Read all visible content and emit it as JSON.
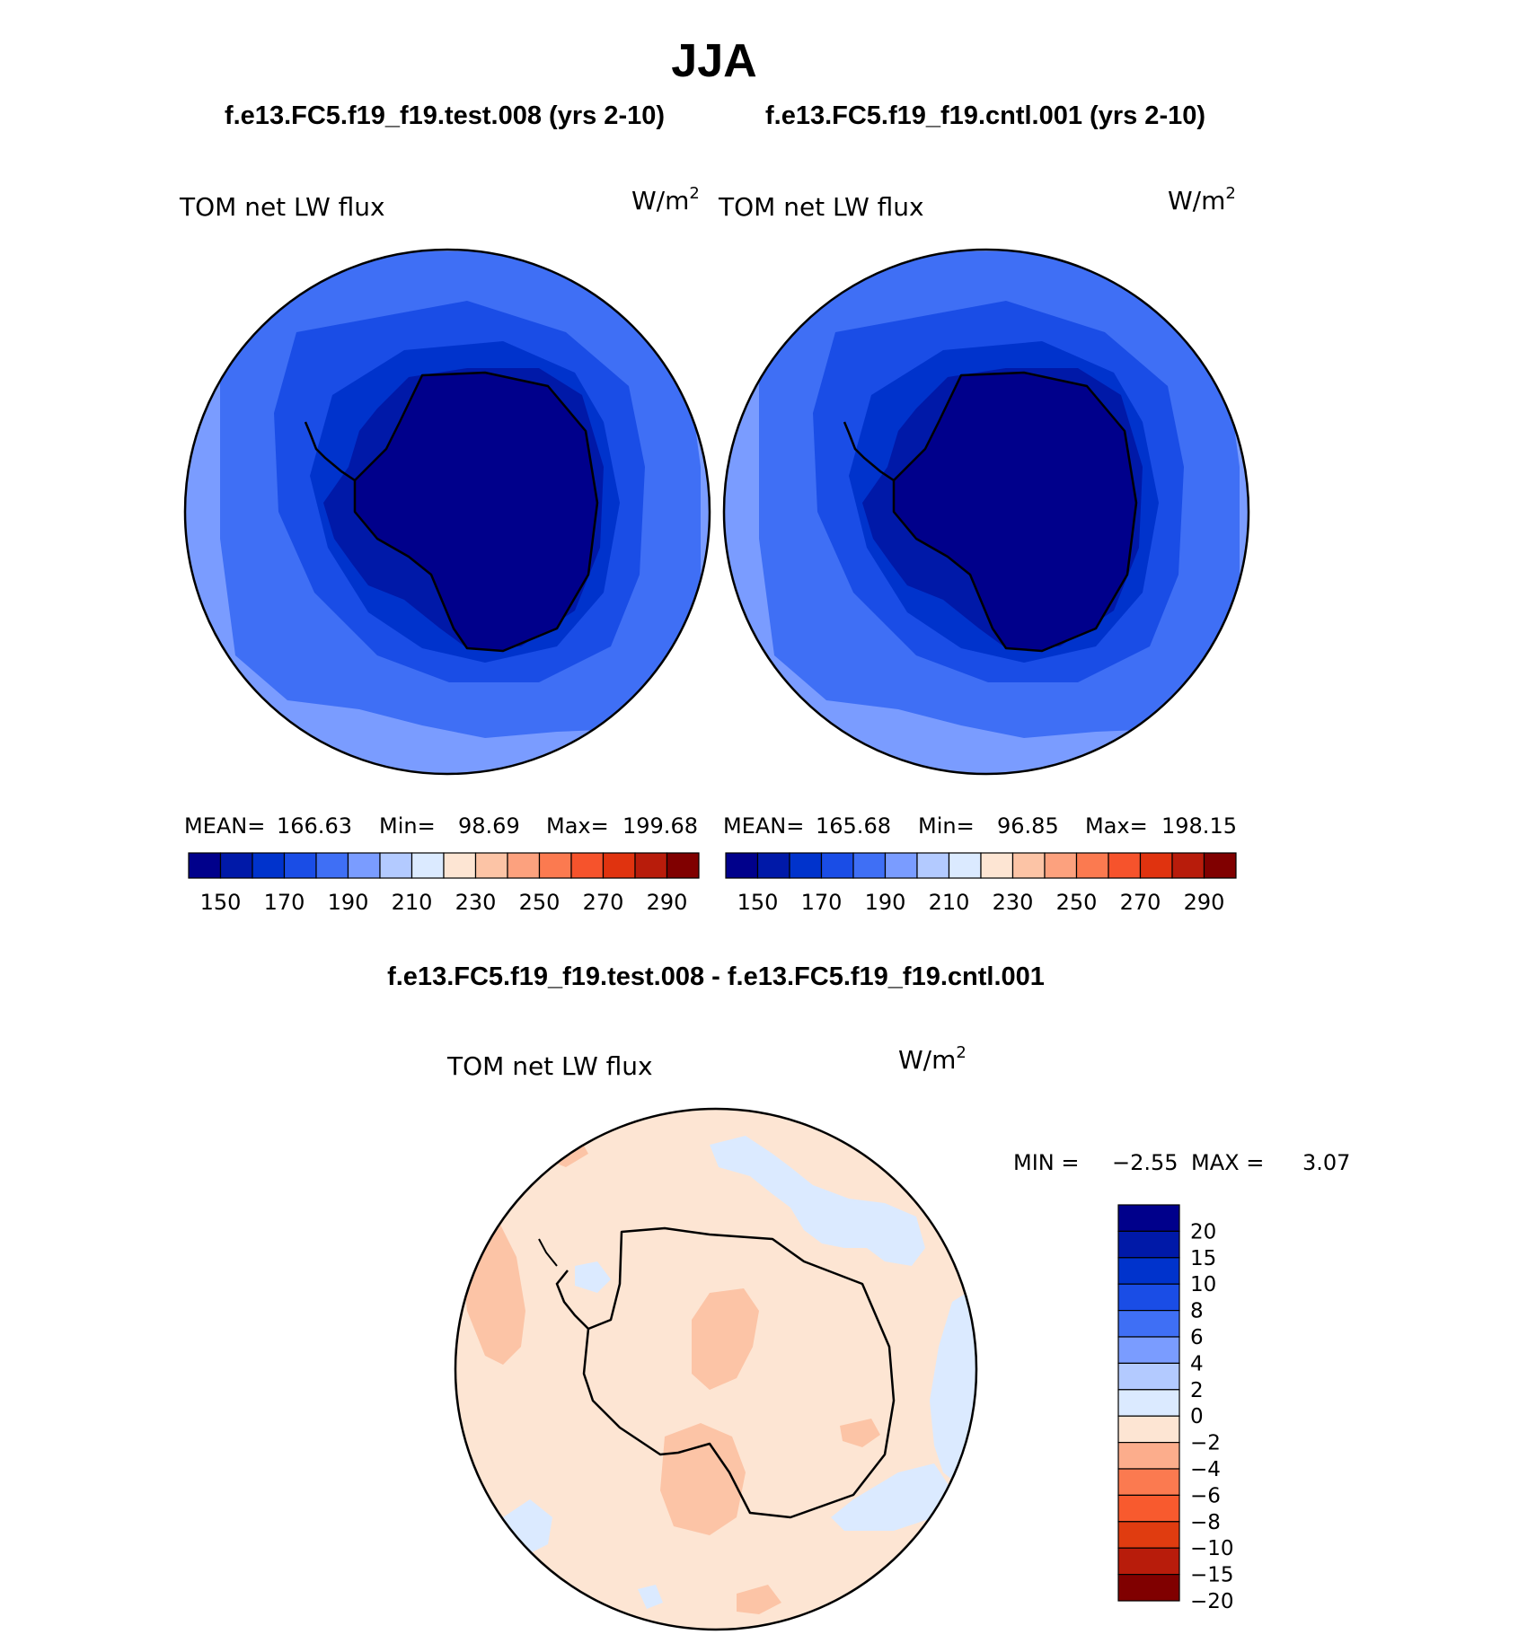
{
  "figure": {
    "season": "JJA",
    "case_test_title": "f.e13.FC5.f19_f19.test.008 (yrs 2-10)",
    "case_cntl_title": "f.e13.FC5.f19_f19.cntl.001 (yrs 2-10)",
    "diff_title": "f.e13.FC5.f19_f19.test.008 - f.e13.FC5.f19_f19.cntl.001"
  },
  "panels": [
    {
      "variable": "TOM net LW flux",
      "units": "W/m",
      "units_exp": "2",
      "stats": {
        "mean_label": "MEAN=",
        "mean": "166.63",
        "min_label": "Min=",
        "min": "98.69",
        "max_label": "Max=",
        "max": "199.68"
      }
    },
    {
      "variable": "TOM net LW flux",
      "units": "W/m",
      "units_exp": "2",
      "stats": {
        "mean_label": "MEAN=",
        "mean": "165.68",
        "min_label": "Min=",
        "min": "96.85",
        "max_label": "Max=",
        "max": "198.15"
      }
    },
    {
      "variable": "TOM net LW flux",
      "units": "W/m",
      "units_exp": "2",
      "stats": {
        "min_label": "MIN =",
        "min": "−2.55",
        "max_label": "MAX =",
        "max": "3.07"
      }
    }
  ],
  "abs_colorbar": {
    "colors": [
      "#00008b",
      "#0019a8",
      "#0033cc",
      "#1a4de6",
      "#3f6ff5",
      "#7a9cff",
      "#b3caff",
      "#dbeaff",
      "#fde5d3",
      "#fcc4a6",
      "#fca17e",
      "#fb7a50",
      "#f6532c",
      "#e0330f",
      "#b81c0b",
      "#800000"
    ],
    "labels": [
      "150",
      "170",
      "190",
      "210",
      "230",
      "250",
      "270",
      "290"
    ]
  },
  "diff_colorbar": {
    "colors": [
      "#00008b",
      "#0019a8",
      "#0033cc",
      "#1a4de6",
      "#3f6ff5",
      "#7a9cff",
      "#b3caff",
      "#dbeaff",
      "#fde5d3",
      "#fcad8c",
      "#fb7a50",
      "#f85a2e",
      "#e03c10",
      "#b81c0b",
      "#800000"
    ],
    "labels": [
      "20",
      "15",
      "10",
      "8",
      "6",
      "4",
      "2",
      "0",
      "−2",
      "−4",
      "−6",
      "−8",
      "−10",
      "−15",
      "−20"
    ]
  }
}
